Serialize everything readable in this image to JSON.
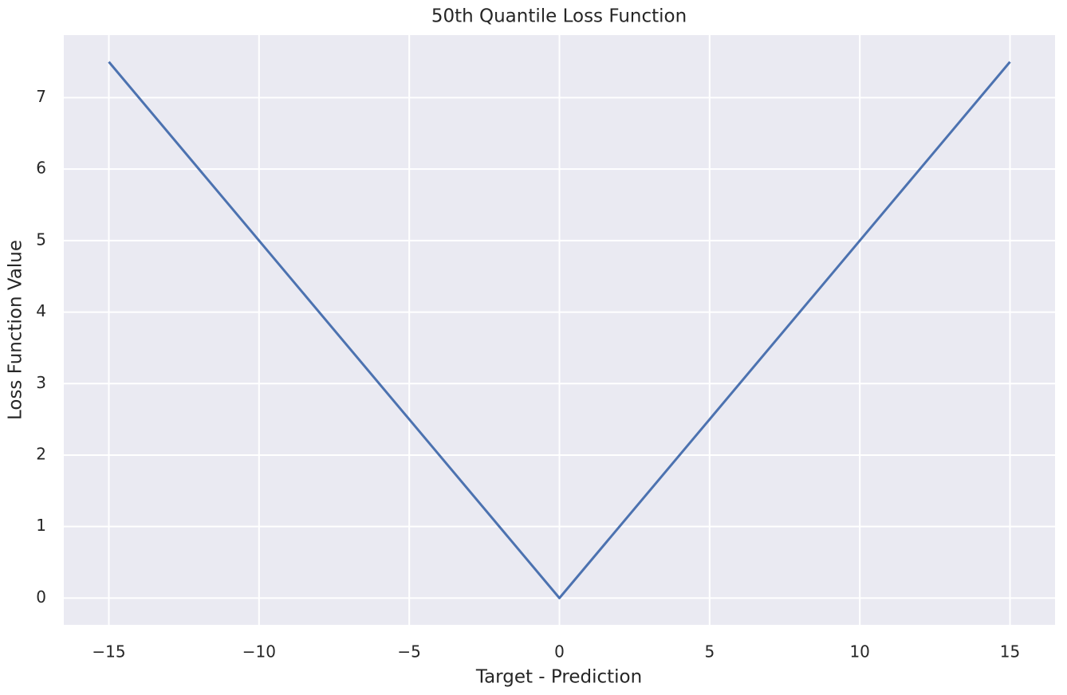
{
  "chart_data": {
    "type": "line",
    "title": "50th Quantile Loss Function",
    "xlabel": "Target - Prediction",
    "ylabel": "Loss Function Value",
    "x": [
      -15,
      0,
      15
    ],
    "values": [
      7.5,
      0,
      7.5
    ],
    "color": "#4c72b0",
    "xlim": [
      -16.5,
      16.5
    ],
    "ylim": [
      -0.375,
      7.875
    ],
    "xticks": [
      {
        "value": -15,
        "label": "−15"
      },
      {
        "value": -10,
        "label": "−10"
      },
      {
        "value": -5,
        "label": "−5"
      },
      0,
      5,
      10,
      15
    ],
    "yticks": [
      0,
      1,
      2,
      3,
      4,
      5,
      6,
      7
    ],
    "grid": true
  }
}
